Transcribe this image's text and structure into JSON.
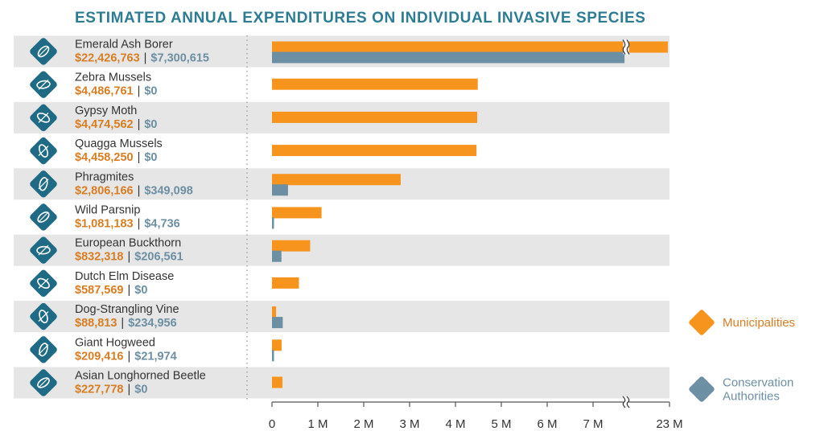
{
  "chart_data": {
    "type": "bar",
    "orientation": "horizontal",
    "title": "ESTIMATED ANNUAL EXPENDITURES ON INDIVIDUAL INVASIVE SPECIES",
    "categories": [
      "Emerald Ash Borer",
      "Zebra Mussels",
      "Gypsy Moth",
      "Quagga Mussels",
      "Phragmites",
      "Wild Parsnip",
      "European Buckthorn",
      "Dutch Elm Disease",
      "Dog-Strangling Vine",
      "Giant Hogweed",
      "Asian Longhorned Beetle"
    ],
    "category_labels": [
      {
        "muni": "$22,426,763",
        "cons": "$7,300,615"
      },
      {
        "muni": "$4,486,761",
        "cons": "$0"
      },
      {
        "muni": "$4,474,562",
        "cons": "$0"
      },
      {
        "muni": "$4,458,250",
        "cons": "$0"
      },
      {
        "muni": "$2,806,166",
        "cons": "$349,098"
      },
      {
        "muni": "$1,081,183",
        "cons": "$4,736"
      },
      {
        "muni": "$832,318",
        "cons": "$206,561"
      },
      {
        "muni": "$587,569",
        "cons": "$0"
      },
      {
        "muni": "$88,813",
        "cons": "$234,956"
      },
      {
        "muni": "$209,416",
        "cons": "$21,974"
      },
      {
        "muni": "$227,778",
        "cons": "$0"
      }
    ],
    "separator": "|",
    "series": [
      {
        "name": "Municipalities",
        "color": "#f7941d",
        "values": [
          22426763,
          4486761,
          4474562,
          4458250,
          2806166,
          1081183,
          832318,
          587569,
          88813,
          209416,
          227778
        ]
      },
      {
        "name": "Conservation Authorities",
        "color": "#6c8fa3",
        "values": [
          7300615,
          0,
          0,
          0,
          349098,
          4736,
          206561,
          0,
          234956,
          21974,
          0
        ]
      }
    ],
    "x_ticks": [
      {
        "value": 0,
        "label": "0"
      },
      {
        "value": 1000000,
        "label": "1 M"
      },
      {
        "value": 2000000,
        "label": "2 M"
      },
      {
        "value": 3000000,
        "label": "3 M"
      },
      {
        "value": 4000000,
        "label": "4 M"
      },
      {
        "value": 5000000,
        "label": "5 M"
      },
      {
        "value": 6000000,
        "label": "6 M"
      },
      {
        "value": 7000000,
        "label": "7 M"
      },
      {
        "value": 23000000,
        "label": "23 M"
      }
    ],
    "xlim": [
      0,
      23000000
    ],
    "axis_break": {
      "from": 7000000,
      "to": 23000000
    },
    "legend": [
      {
        "label": "Municipalities",
        "color": "#f7941d",
        "text_color": "#d97d22",
        "icon": "diamond-icon"
      },
      {
        "label": "Conservation\nAuthorities",
        "color": "#6c8fa3",
        "text_color": "#6c8fa3",
        "icon": "diamond-icon"
      }
    ],
    "legend_position": "right",
    "category_icons": [
      "ash-borer-beetle-icon",
      "zebra-mussel-icon",
      "gypsy-moth-icon",
      "quagga-mussel-icon",
      "phragmites-reed-icon",
      "wild-parsnip-icon",
      "buckthorn-leaf-icon",
      "elm-leaf-icon",
      "dog-strangling-vine-icon",
      "giant-hogweed-icon",
      "longhorned-beetle-icon"
    ],
    "colors": {
      "title": "#2d7c93",
      "row_band": "#e6e6e6",
      "icon_fill": "#1f6b86",
      "muni_text": "#d97d22",
      "cons_text": "#6c8fa3"
    }
  }
}
